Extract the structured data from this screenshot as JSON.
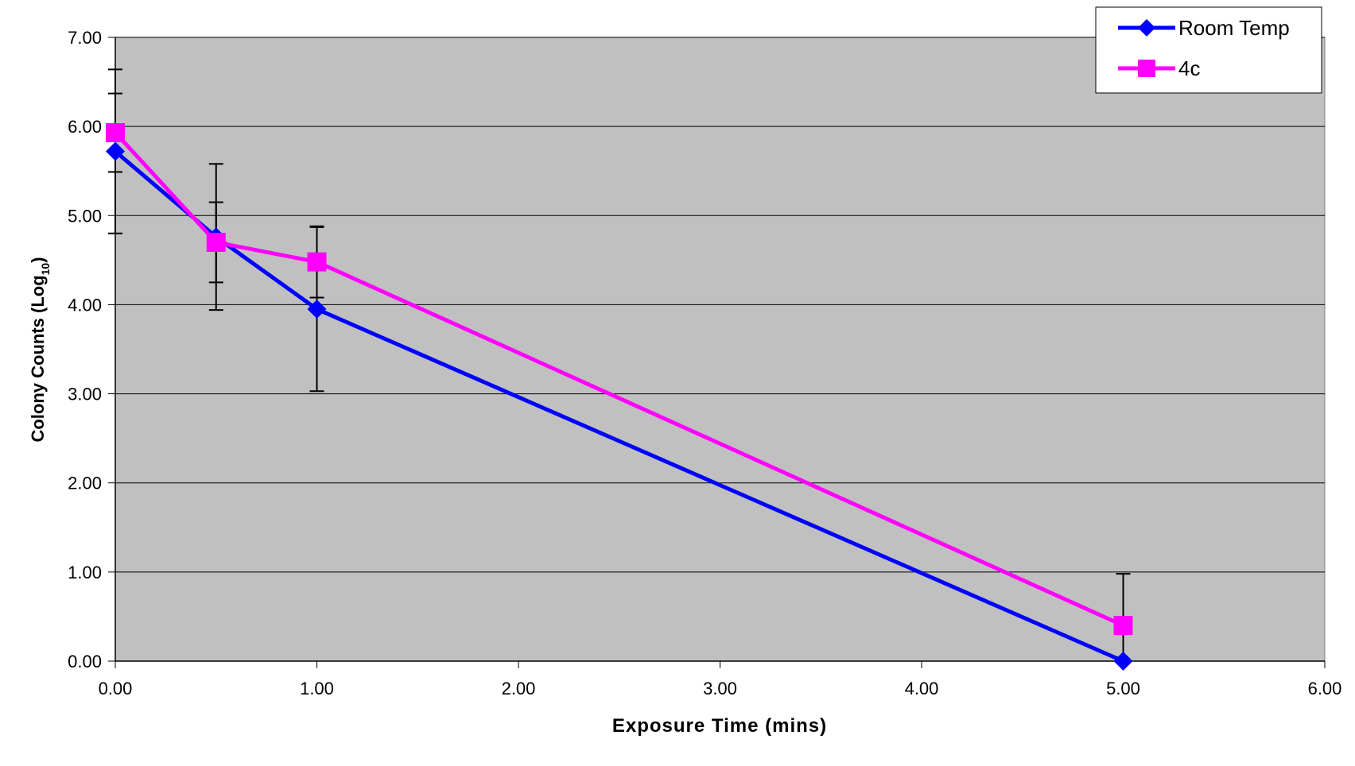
{
  "chart_data": {
    "type": "line",
    "xlabel": "Exposure Time (mins)",
    "ylabel": "Colony Counts (Log",
    "ylabel_subscript": "10",
    "ylabel_suffix": ")",
    "xlim": [
      0,
      6
    ],
    "ylim": [
      0,
      7
    ],
    "x_ticks": [
      "0.00",
      "1.00",
      "2.00",
      "3.00",
      "4.00",
      "5.00",
      "6.00"
    ],
    "y_ticks": [
      "0.00",
      "1.00",
      "2.00",
      "3.00",
      "4.00",
      "5.00",
      "6.00",
      "7.00"
    ],
    "grid": "horizontal",
    "legend_position": "top-right",
    "plot_background": "#c0c0c0",
    "series": [
      {
        "name": "Room Temp",
        "color": "#0000ff",
        "marker": "diamond",
        "x": [
          0,
          0.5,
          1,
          5
        ],
        "y": [
          5.72,
          4.76,
          3.95,
          0.0
        ],
        "error": [
          0.92,
          0.82,
          0.92,
          0.0
        ]
      },
      {
        "name": "4c",
        "color": "#ff00ff",
        "marker": "square",
        "x": [
          0,
          0.5,
          1,
          5
        ],
        "y": [
          5.93,
          4.7,
          4.48,
          0.4
        ],
        "error": [
          0.44,
          0.45,
          0.4,
          0.58
        ]
      }
    ]
  }
}
